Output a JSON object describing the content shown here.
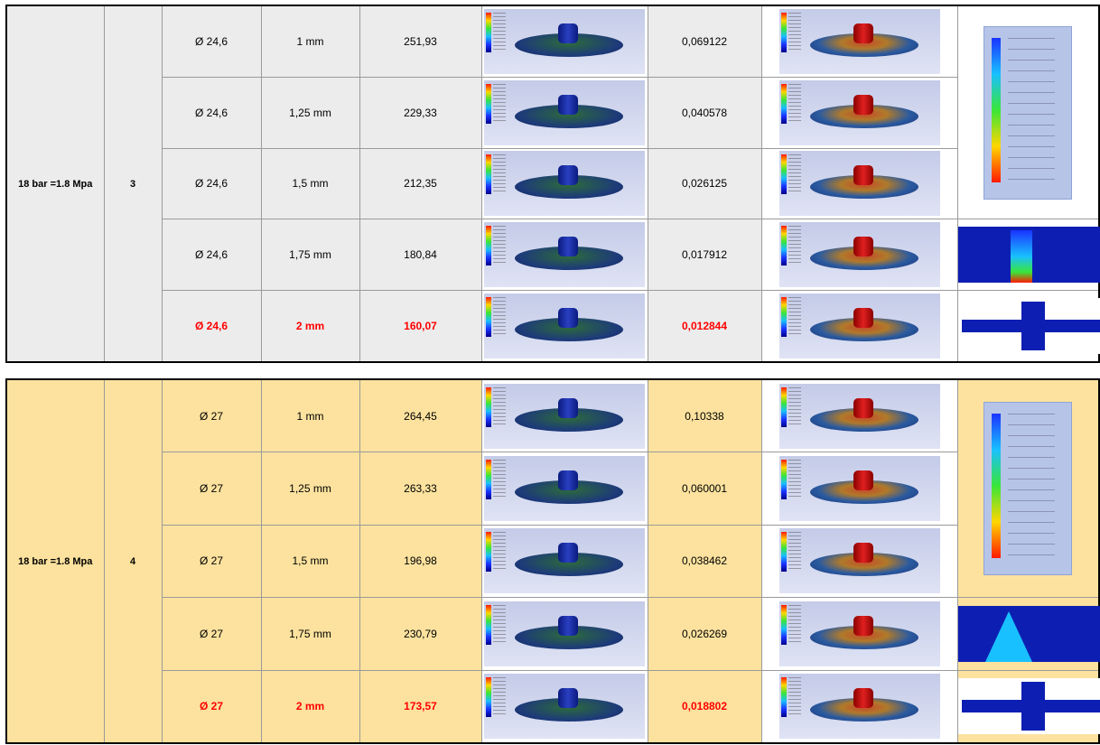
{
  "table1": {
    "pressure": "18 bar =1.8 Mpa",
    "index": "3",
    "rows": [
      {
        "diameter": "Ø 24,6",
        "thickness": "1 mm",
        "stress": "251,93",
        "deformation": "0,069122",
        "highlight": false
      },
      {
        "diameter": "Ø 24,6",
        "thickness": "1,25 mm",
        "stress": "229,33",
        "deformation": "0,040578",
        "highlight": false
      },
      {
        "diameter": "Ø 24,6",
        "thickness": "1,5 mm",
        "stress": "212,35",
        "deformation": "0,026125",
        "highlight": false
      },
      {
        "diameter": "Ø 24,6",
        "thickness": "1,75 mm",
        "stress": "180,84",
        "deformation": "0,017912",
        "highlight": false
      },
      {
        "diameter": "Ø 24,6",
        "thickness": "2 mm",
        "stress": "160,07",
        "deformation": "0,012844",
        "highlight": true
      }
    ]
  },
  "table2": {
    "pressure": "18 bar =1.8 Mpa",
    "index": "4",
    "rows": [
      {
        "diameter": "Ø 27",
        "thickness": "1 mm",
        "stress": "264,45",
        "deformation": "0,10338",
        "highlight": false
      },
      {
        "diameter": "Ø 27",
        "thickness": "1,25 mm",
        "stress": "263,33",
        "deformation": "0,060001",
        "highlight": false
      },
      {
        "diameter": "Ø 27",
        "thickness": "1,5 mm",
        "stress": "196,98",
        "deformation": "0,038462",
        "highlight": false
      },
      {
        "diameter": "Ø 27",
        "thickness": "1,75 mm",
        "stress": "230,79",
        "deformation": "0,026269",
        "highlight": false
      },
      {
        "diameter": "Ø 27",
        "thickness": "2 mm",
        "stress": "173,57",
        "deformation": "0,018802",
        "highlight": true
      }
    ]
  },
  "colors": {
    "highlight": "#ff0000",
    "table1_bg": "#ececec",
    "table2_bg": "#fce29e"
  }
}
